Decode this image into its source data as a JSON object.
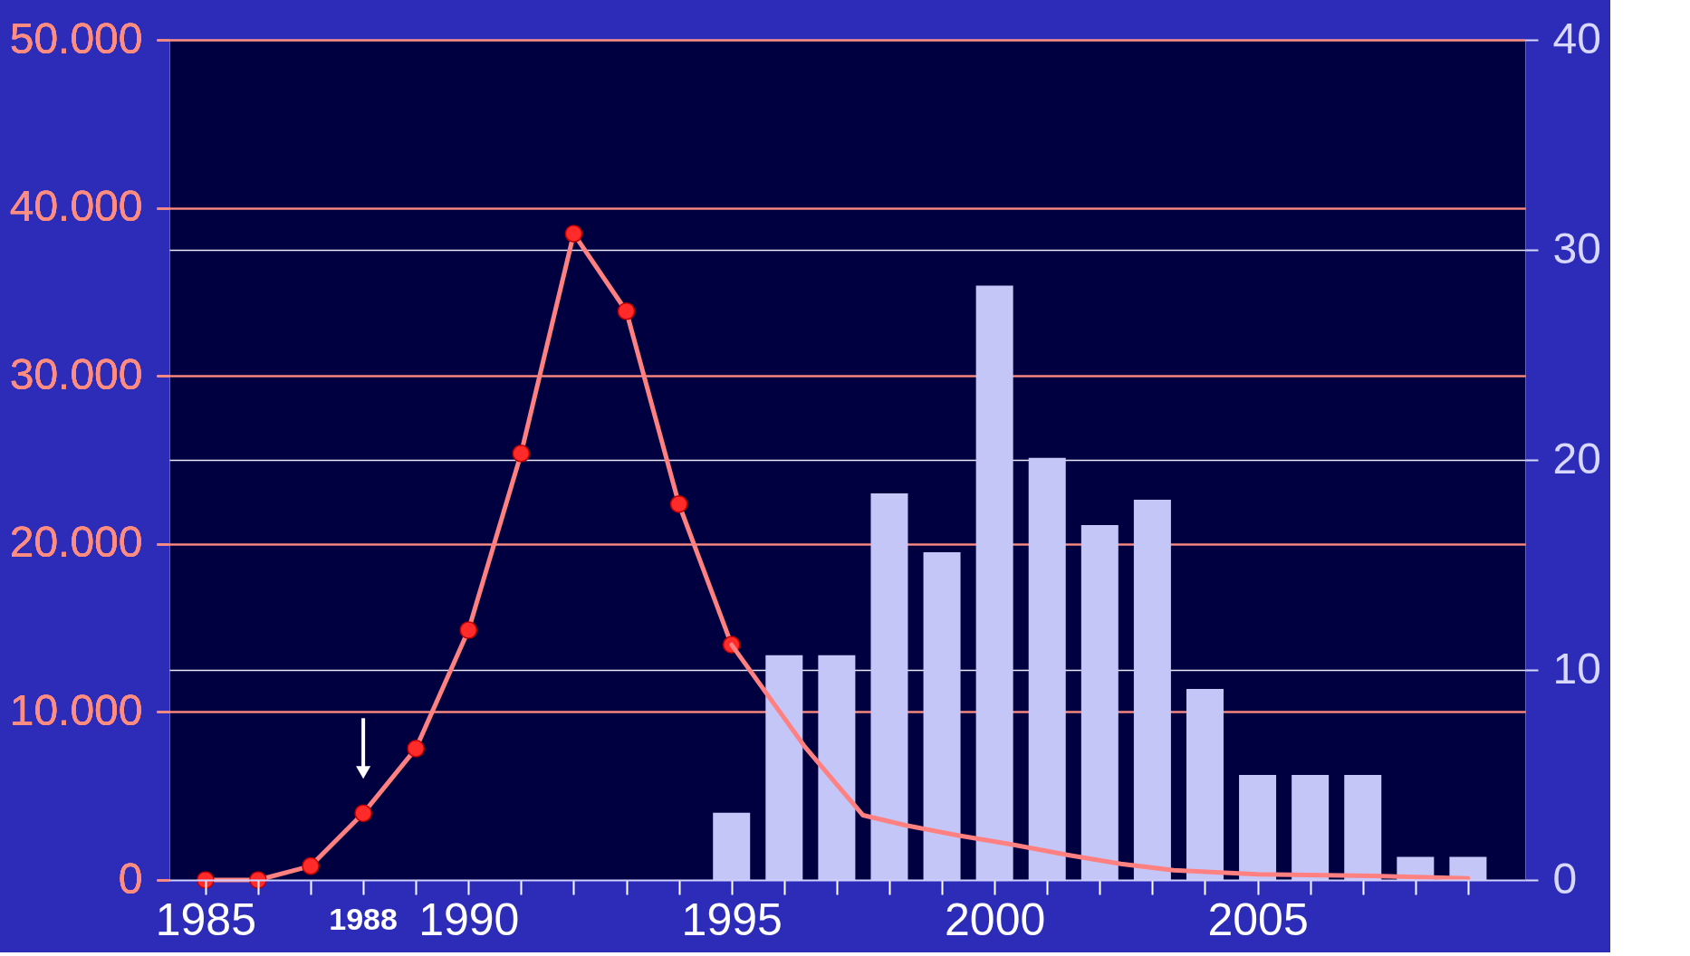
{
  "chart_data": {
    "type": "line",
    "xlim": [
      1984.4,
      2010
    ],
    "xticks": [
      1985,
      {
        "value": 1986,
        "label": null
      },
      {
        "value": 1987,
        "label": null
      },
      {
        "value": 1988,
        "label": null
      },
      {
        "value": 1989,
        "label": null
      },
      1990,
      {
        "value": 1991,
        "label": null
      },
      {
        "value": 1992,
        "label": null
      },
      {
        "value": 1993,
        "label": null
      },
      {
        "value": 1994,
        "label": null
      },
      1995,
      {
        "value": 1996,
        "label": null
      },
      {
        "value": 1997,
        "label": null
      },
      {
        "value": 1998,
        "label": null
      },
      {
        "value": 1999,
        "label": null
      },
      2000,
      {
        "value": 2001,
        "label": null
      },
      {
        "value": 2002,
        "label": null
      },
      {
        "value": 2003,
        "label": null
      },
      {
        "value": 2004,
        "label": null
      },
      2005,
      {
        "value": 2006,
        "label": null
      },
      {
        "value": 2007,
        "label": null
      },
      {
        "value": 2008,
        "label": null
      },
      {
        "value": 2009,
        "label": null
      }
    ],
    "ylim": [
      0,
      50000
    ],
    "yticks": [
      0,
      {
        "value": 10000,
        "label": "10.000"
      },
      {
        "value": 20000,
        "label": "20.000"
      },
      {
        "value": 30000,
        "label": "30.000"
      },
      {
        "value": 40000,
        "label": "40.000"
      },
      {
        "value": 50000,
        "label": "50.000"
      }
    ],
    "y2lim": [
      0,
      40
    ],
    "y2ticks": [
      0,
      10,
      20,
      30,
      40
    ],
    "grid": "y",
    "series": [
      {
        "type": "bar",
        "axis": "y2",
        "color": "#c4c6f8",
        "x": [
          1995,
          1996,
          1997,
          1998,
          1999,
          2000,
          2001,
          2002,
          2003,
          2004,
          2005,
          2006,
          2007,
          2008,
          2009
        ],
        "values": [
          3.2,
          10.7,
          10.7,
          18.4,
          15.6,
          28.3,
          20.1,
          16.9,
          18.1,
          9.1,
          5,
          5,
          5,
          1.1,
          1.1
        ]
      },
      {
        "color": "#ff8080",
        "marker": "circle",
        "x": [
          1985,
          1986,
          1987,
          1988,
          1989,
          1990,
          1991,
          1992,
          1993,
          1994,
          1995
        ],
        "values": [
          0,
          0,
          830,
          3970,
          7820,
          14870,
          25380,
          38460,
          33850,
          22370,
          14000
        ]
      },
      {
        "color": "#ff8080",
        "marker": "none",
        "x": [
          1995,
          1996.4,
          1997.5,
          1998.3,
          1999.3,
          2000.3,
          2001.4,
          2002.4,
          2003.4,
          2005,
          2007.2,
          2009
        ],
        "values": [
          14000,
          7900,
          3850,
          3260,
          2650,
          2130,
          1480,
          960,
          580,
          340,
          240,
          100
        ]
      }
    ],
    "annotations": [
      {
        "text": "1988",
        "x": 1988,
        "y": 3970
      }
    ]
  }
}
